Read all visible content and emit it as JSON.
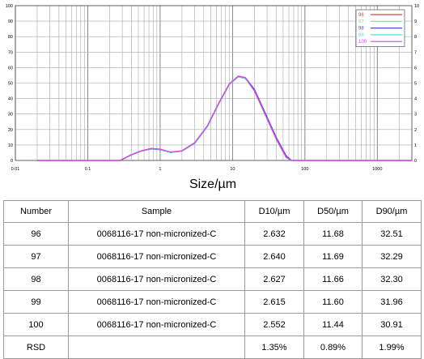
{
  "chart_data": {
    "type": "line",
    "xlabel": "Size/µm",
    "ylabel": "",
    "x_scale": "log",
    "xlim": [
      0.01,
      3000
    ],
    "ylim": [
      0,
      100
    ],
    "y2lim": [
      0,
      10
    ],
    "x_ticks": [
      {
        "value": 0.01,
        "label": "0.01"
      },
      {
        "value": 0.1,
        "label": "0.1"
      },
      {
        "value": 1,
        "label": "1"
      },
      {
        "value": 10,
        "label": "10"
      },
      {
        "value": 100,
        "label": "100"
      },
      {
        "value": 1000,
        "label": "1000"
      }
    ],
    "y_ticks": [
      0,
      10,
      20,
      30,
      40,
      50,
      60,
      70,
      80,
      90,
      100
    ],
    "y2_ticks": [
      0,
      1,
      2,
      3,
      4,
      5,
      6,
      7,
      8,
      9,
      10
    ],
    "grid": true,
    "legend_position": "top-right",
    "series": [
      {
        "name": "96",
        "color": "#d94040",
        "x": [
          0.02,
          0.28,
          0.4,
          0.55,
          0.75,
          1.0,
          1.4,
          2.0,
          3.0,
          4.5,
          6.5,
          9.0,
          12,
          15,
          20,
          28,
          40,
          55,
          65,
          100,
          3000
        ],
        "y": [
          0,
          0,
          3.5,
          6.0,
          7.5,
          7.0,
          5.2,
          6.0,
          11,
          22,
          37,
          49,
          54,
          53,
          46,
          31,
          15,
          3,
          0,
          0,
          0
        ]
      },
      {
        "name": "97",
        "color": "#8ad68a",
        "x": [
          0.02,
          0.28,
          0.4,
          0.55,
          0.75,
          1.0,
          1.4,
          2.0,
          3.0,
          4.5,
          6.5,
          9.0,
          12,
          15,
          20,
          28,
          40,
          55,
          65,
          100,
          3000
        ],
        "y": [
          0,
          0,
          3.5,
          6.0,
          7.4,
          7.0,
          5.1,
          6.0,
          11,
          22,
          37,
          49,
          54,
          53.5,
          46,
          31,
          15,
          3,
          0,
          0,
          0
        ]
      },
      {
        "name": "98",
        "color": "#4a4ad8",
        "x": [
          0.02,
          0.28,
          0.4,
          0.55,
          0.75,
          1.0,
          1.4,
          2.0,
          3.0,
          4.5,
          6.5,
          9.0,
          12,
          15,
          20,
          28,
          40,
          55,
          65,
          100,
          3000
        ],
        "y": [
          0,
          0,
          3.6,
          6.1,
          7.5,
          7.0,
          5.3,
          6.1,
          11,
          22,
          37,
          49,
          54.5,
          53.5,
          46,
          31,
          15,
          3,
          0,
          0,
          0
        ]
      },
      {
        "name": "99",
        "color": "#55d8e0",
        "x": [
          0.02,
          0.28,
          0.4,
          0.55,
          0.75,
          1.0,
          1.4,
          2.0,
          3.0,
          4.5,
          6.5,
          9.0,
          12,
          15,
          20,
          28,
          40,
          55,
          65,
          100,
          3000
        ],
        "y": [
          0,
          0,
          3.5,
          6.0,
          7.6,
          7.1,
          5.2,
          6.0,
          11,
          22,
          37,
          49,
          54,
          53,
          45,
          30,
          14,
          2,
          0,
          0,
          0
        ]
      },
      {
        "name": "100",
        "color": "#e040e0",
        "x": [
          0.02,
          0.28,
          0.4,
          0.55,
          0.75,
          1.0,
          1.4,
          2.0,
          3.0,
          4.5,
          6.5,
          9.0,
          12,
          15,
          20,
          28,
          40,
          55,
          65,
          100,
          3000
        ],
        "y": [
          0,
          0,
          3.8,
          6.3,
          7.8,
          7.3,
          5.4,
          6.3,
          11.5,
          22.5,
          37.5,
          49.5,
          54.5,
          53.5,
          45,
          30,
          14,
          2,
          0,
          0,
          0
        ]
      }
    ]
  },
  "table": {
    "headers": [
      "Number",
      "Sample",
      "D10/µm",
      "D50/µm",
      "D90/µm"
    ],
    "rows": [
      [
        "96",
        "0068116-17 non-micronized-C",
        "2.632",
        "11.68",
        "32.51"
      ],
      [
        "97",
        "0068116-17 non-micronized-C",
        "2.640",
        "11.69",
        "32.29"
      ],
      [
        "98",
        "0068116-17 non-micronized-C",
        "2.627",
        "11.66",
        "32.30"
      ],
      [
        "99",
        "0068116-17 non-micronized-C",
        "2.615",
        "11.60",
        "31.96"
      ],
      [
        "100",
        "0068116-17 non-micronized-C",
        "2.552",
        "11.44",
        "30.91"
      ],
      [
        "RSD",
        "",
        "1.35%",
        "0.89%",
        "1.99%"
      ]
    ]
  }
}
